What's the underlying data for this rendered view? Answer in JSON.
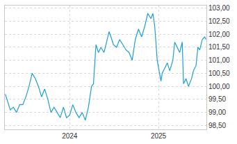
{
  "chart_data": {
    "type": "line",
    "x": [
      2023.275,
      2023.331,
      2023.366,
      2023.401,
      2023.437,
      2023.472,
      2023.507,
      2023.542,
      2023.577,
      2023.613,
      2023.648,
      2023.683,
      2023.718,
      2023.754,
      2023.789,
      2023.824,
      2023.859,
      2023.894,
      2023.93,
      2023.965,
      2024.0,
      2024.035,
      2024.07,
      2024.106,
      2024.141,
      2024.176,
      2024.211,
      2024.246,
      2024.268,
      2024.296,
      2024.324,
      2024.352,
      2024.387,
      2024.423,
      2024.444,
      2024.465,
      2024.493,
      2024.528,
      2024.563,
      2024.599,
      2024.634,
      2024.669,
      2024.704,
      2024.739,
      2024.775,
      2024.81,
      2024.845,
      2024.88,
      2024.915,
      2024.937,
      2024.958,
      2024.986,
      2025.007,
      2025.028,
      2025.042,
      2025.07,
      2025.099,
      2025.127,
      2025.162,
      2025.183,
      2025.211,
      2025.239,
      2025.268,
      2025.282,
      2025.31,
      2025.338,
      2025.373,
      2025.394,
      2025.423,
      2025.444,
      2025.465,
      2025.493,
      2025.521,
      2025.535
    ],
    "values": [
      99.7,
      99.1,
      99.2,
      99.0,
      99.3,
      99.3,
      99.6,
      100.0,
      100.5,
      100.3,
      100.0,
      99.6,
      99.9,
      99.5,
      99.0,
      99.2,
      99.0,
      98.8,
      99.2,
      98.8,
      98.9,
      99.3,
      99.0,
      98.8,
      99.0,
      98.7,
      99.2,
      100.0,
      100.1,
      101.6,
      101.3,
      101.5,
      101.3,
      101.8,
      102.1,
      101.9,
      101.6,
      101.5,
      101.8,
      101.6,
      101.4,
      101.3,
      101.0,
      101.8,
      102.2,
      101.9,
      102.3,
      102.8,
      102.6,
      102.8,
      102.3,
      101.0,
      100.6,
      100.2,
      100.5,
      100.7,
      100.9,
      100.6,
      101.0,
      101.7,
      101.5,
      101.3,
      101.7,
      100.1,
      100.3,
      100.0,
      100.3,
      100.6,
      100.8,
      101.5,
      101.4,
      101.8,
      101.9,
      101.8
    ],
    "color": "#1a9fd6",
    "xlim": [
      2023.27,
      2025.54
    ],
    "xticks": [
      2024,
      2025
    ],
    "ylim": [
      98.35,
      103.1
    ],
    "yticks": [
      {
        "value": 98.5,
        "label": "98,50"
      },
      {
        "value": 99,
        "label": "99,00"
      },
      {
        "value": 99.5,
        "label": "99,50"
      },
      {
        "value": 100,
        "label": "100,00"
      },
      {
        "value": 100.5,
        "label": "100,50"
      },
      {
        "value": 101,
        "label": "101,00"
      },
      {
        "value": 101.5,
        "label": "101,50"
      },
      {
        "value": 102,
        "label": "102,00"
      },
      {
        "value": 102.5,
        "label": "102,50"
      },
      {
        "value": 103,
        "label": "103,00"
      }
    ],
    "grid": true
  }
}
